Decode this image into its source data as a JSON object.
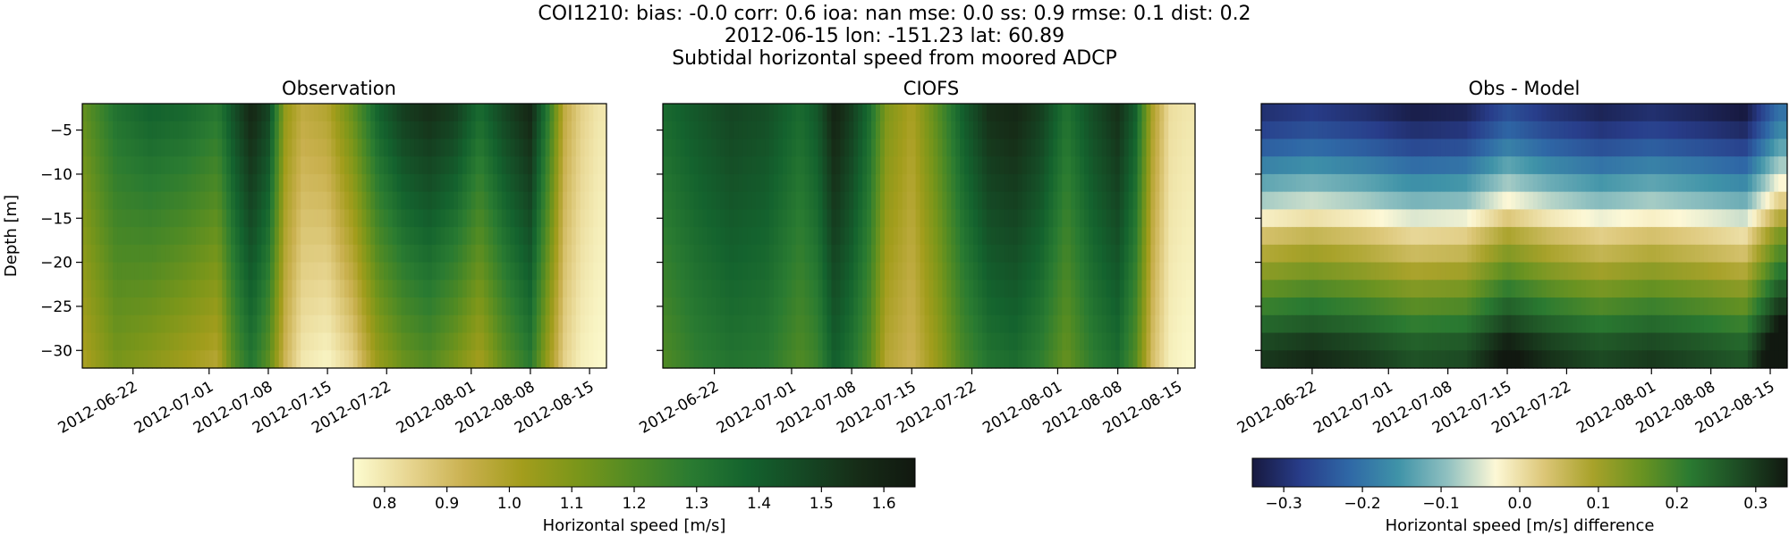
{
  "figure": {
    "title_line1": "COI1210: bias: -0.0  corr: 0.6  ioa: nan  mse: 0.0  ss: 0.9  rmse: 0.1  dist: 0.2",
    "title_line2": "2012-06-15 lon: -151.23 lat: 60.89",
    "title_line3": "Subtidal horizontal speed from moored ADCP"
  },
  "colors": {
    "speed_cmap": [
      "#fdfcd1",
      "#e7d590",
      "#c9b04e",
      "#a39d1c",
      "#7a961a",
      "#4f8a24",
      "#2a7b31",
      "#14632e",
      "#154824",
      "#162c17",
      "#111810"
    ],
    "diff_cmap": [
      "#17193f",
      "#283d8a",
      "#2f68a6",
      "#3f93a8",
      "#8fc0c0",
      "#fdf8d6",
      "#dcc677",
      "#a8a22a",
      "#6a9321",
      "#2a7a31",
      "#1d4c24",
      "#111810"
    ]
  },
  "chart_data": [
    {
      "type": "heatmap",
      "title": "Observation",
      "xlabel": "",
      "ylabel": "Depth [m]",
      "x_start": "2012-06-16",
      "x_end": "2012-08-17",
      "xticks": [
        "2012-06-22",
        "2012-07-01",
        "2012-07-08",
        "2012-07-15",
        "2012-07-22",
        "2012-08-01",
        "2012-08-08",
        "2012-08-15"
      ],
      "ylim": [
        -32,
        -2
      ],
      "yticks": [
        -5,
        -10,
        -15,
        -20,
        -25,
        -30
      ],
      "depths": [
        -3,
        -5,
        -7,
        -9,
        -11,
        -13,
        -15,
        -17,
        -19,
        -21,
        -23,
        -25,
        -27,
        -29,
        -31
      ],
      "clim": [
        0.75,
        1.65
      ],
      "dates": [
        "2012-06-16",
        "2012-06-20",
        "2012-06-24",
        "2012-06-28",
        "2012-07-02",
        "2012-07-04",
        "2012-07-06",
        "2012-07-08",
        "2012-07-10",
        "2012-07-12",
        "2012-07-15",
        "2012-07-18",
        "2012-07-21",
        "2012-07-24",
        "2012-07-27",
        "2012-07-30",
        "2012-08-02",
        "2012-08-05",
        "2012-08-08",
        "2012-08-10",
        "2012-08-12",
        "2012-08-14",
        "2012-08-16"
      ],
      "surface_values": [
        1.15,
        1.32,
        1.38,
        1.36,
        1.3,
        1.45,
        1.58,
        1.48,
        1.05,
        0.95,
        0.98,
        1.15,
        1.38,
        1.5,
        1.55,
        1.5,
        1.35,
        1.48,
        1.58,
        1.3,
        0.95,
        0.85,
        0.8
      ],
      "bottom_values": [
        1.0,
        1.12,
        1.08,
        1.03,
        0.98,
        1.2,
        1.32,
        1.18,
        0.92,
        0.8,
        0.77,
        0.85,
        1.05,
        1.15,
        1.2,
        1.12,
        1.02,
        1.18,
        1.3,
        1.05,
        0.85,
        0.78,
        0.76
      ]
    },
    {
      "type": "heatmap",
      "title": "CIOFS",
      "xlabel": "",
      "ylabel": "",
      "x_start": "2012-06-16",
      "x_end": "2012-08-17",
      "xticks": [
        "2012-06-22",
        "2012-07-01",
        "2012-07-08",
        "2012-07-15",
        "2012-07-22",
        "2012-08-01",
        "2012-08-08",
        "2012-08-15"
      ],
      "ylim": [
        -32,
        -2
      ],
      "yticks": [
        -5,
        -10,
        -15,
        -20,
        -25,
        -30
      ],
      "depths": [
        -3,
        -5,
        -7,
        -9,
        -11,
        -13,
        -15,
        -17,
        -19,
        -21,
        -23,
        -25,
        -27,
        -29,
        -31
      ],
      "clim": [
        0.75,
        1.65
      ],
      "dates": [
        "2012-06-16",
        "2012-06-20",
        "2012-06-24",
        "2012-06-28",
        "2012-07-02",
        "2012-07-04",
        "2012-07-06",
        "2012-07-08",
        "2012-07-10",
        "2012-07-12",
        "2012-07-15",
        "2012-07-18",
        "2012-07-21",
        "2012-07-24",
        "2012-07-27",
        "2012-07-30",
        "2012-08-02",
        "2012-08-05",
        "2012-08-08",
        "2012-08-10",
        "2012-08-12",
        "2012-08-14",
        "2012-08-16"
      ],
      "surface_values": [
        1.35,
        1.42,
        1.48,
        1.45,
        1.35,
        1.42,
        1.6,
        1.5,
        1.35,
        1.1,
        1.0,
        1.18,
        1.4,
        1.55,
        1.58,
        1.5,
        1.32,
        1.45,
        1.55,
        1.4,
        1.0,
        0.82,
        0.8
      ],
      "bottom_values": [
        1.2,
        1.28,
        1.32,
        1.3,
        1.2,
        1.25,
        1.4,
        1.32,
        1.2,
        0.98,
        0.92,
        1.05,
        1.22,
        1.32,
        1.35,
        1.28,
        1.15,
        1.28,
        1.35,
        1.2,
        0.9,
        0.78,
        0.76
      ]
    },
    {
      "type": "heatmap",
      "title": "Obs - Model",
      "xlabel": "",
      "ylabel": "",
      "x_start": "2012-06-16",
      "x_end": "2012-08-17",
      "xticks": [
        "2012-06-22",
        "2012-07-01",
        "2012-07-08",
        "2012-07-15",
        "2012-07-22",
        "2012-08-01",
        "2012-08-08",
        "2012-08-15"
      ],
      "ylim": [
        -32,
        -2
      ],
      "yticks": [
        -5,
        -10,
        -15,
        -20,
        -25,
        -30
      ],
      "depths": [
        -3,
        -5,
        -7,
        -9,
        -11,
        -13,
        -15,
        -17,
        -19,
        -21,
        -23,
        -25,
        -27,
        -29,
        -31
      ],
      "clim": [
        -0.34,
        0.34
      ],
      "dates": [
        "2012-06-16",
        "2012-06-22",
        "2012-06-28",
        "2012-07-04",
        "2012-07-10",
        "2012-07-15",
        "2012-07-20",
        "2012-07-26",
        "2012-08-01",
        "2012-08-07",
        "2012-08-12",
        "2012-08-16"
      ],
      "depth_profile": [
        -0.3,
        -0.27,
        -0.23,
        -0.18,
        -0.13,
        -0.08,
        -0.02,
        0.04,
        0.08,
        0.12,
        0.16,
        0.2,
        0.24,
        0.28,
        0.3
      ],
      "time_offset": [
        0.0,
        0.02,
        0.0,
        -0.03,
        -0.02,
        0.05,
        0.01,
        -0.02,
        0.0,
        -0.02,
        -0.04,
        0.1
      ]
    }
  ],
  "colorbars": [
    {
      "label": "Horizontal speed [m/s]",
      "range": [
        0.75,
        1.65
      ],
      "ticks": [
        "0.8",
        "0.9",
        "1.0",
        "1.1",
        "1.2",
        "1.3",
        "1.4",
        "1.5",
        "1.6"
      ]
    },
    {
      "label": "Horizontal speed [m/s] difference",
      "range": [
        -0.34,
        0.34
      ],
      "ticks": [
        "−0.3",
        "−0.2",
        "−0.1",
        "0.0",
        "0.1",
        "0.2",
        "0.3"
      ]
    }
  ]
}
